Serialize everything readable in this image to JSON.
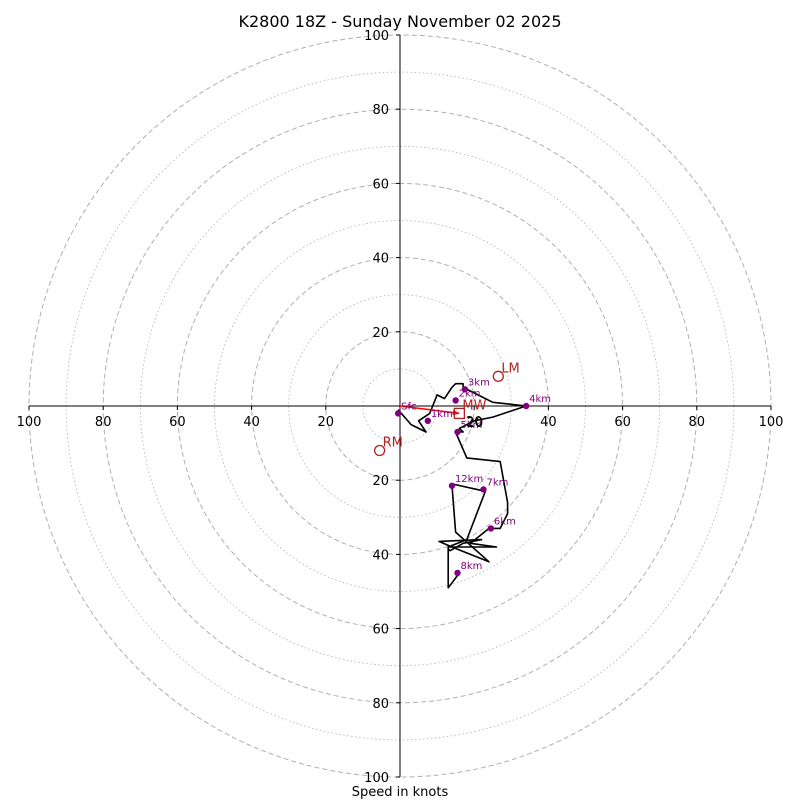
{
  "chart_data": {
    "type": "polar-hodograph",
    "title": "K2800 18Z - Sunday November 02 2025",
    "xlabel": "Speed in knots",
    "axis_range": [
      -100,
      100
    ],
    "major_rings": [
      20,
      40,
      60,
      80,
      100
    ],
    "minor_rings": [
      10,
      30,
      50,
      70,
      90
    ],
    "tick_labels": [
      "100",
      "80",
      "60",
      "40",
      "20",
      "20",
      "40",
      "60",
      "80",
      "100"
    ],
    "axis_ticks": [
      {
        "value": -100,
        "label": "100"
      },
      {
        "value": -80,
        "label": "80"
      },
      {
        "value": -60,
        "label": "60"
      },
      {
        "value": -40,
        "label": "40"
      },
      {
        "value": -20,
        "label": "20"
      },
      {
        "value": 20,
        "label": "20"
      },
      {
        "value": 40,
        "label": "40"
      },
      {
        "value": 60,
        "label": "60"
      },
      {
        "value": 80,
        "label": "80"
      },
      {
        "value": 100,
        "label": "100"
      }
    ],
    "center_label": "20",
    "hodograph_path": [
      [
        -0.5,
        -1
      ],
      [
        3,
        -5
      ],
      [
        7,
        -7
      ],
      [
        5,
        -4
      ],
      [
        8,
        -2
      ],
      [
        10,
        3
      ],
      [
        12,
        2
      ],
      [
        14,
        5
      ],
      [
        15,
        6
      ],
      [
        17,
        6
      ],
      [
        17,
        5
      ],
      [
        21,
        3
      ],
      [
        25,
        1
      ],
      [
        34,
        0
      ],
      [
        25,
        -3
      ],
      [
        20,
        -4
      ],
      [
        16,
        -6
      ],
      [
        17,
        -7
      ],
      [
        15,
        -7
      ],
      [
        18,
        -14
      ],
      [
        27,
        -15
      ],
      [
        29,
        -26
      ],
      [
        29,
        -29
      ],
      [
        27,
        -33
      ],
      [
        24,
        -33
      ],
      [
        19,
        -37
      ],
      [
        26,
        -38
      ],
      [
        13,
        -38
      ],
      [
        13,
        -38.5
      ],
      [
        13.5,
        -39
      ],
      [
        17,
        -37
      ],
      [
        22,
        -36
      ],
      [
        10.5,
        -36.5
      ],
      [
        14,
        -38
      ],
      [
        24,
        -42
      ],
      [
        15,
        -34
      ],
      [
        14,
        -21
      ],
      [
        23,
        -23
      ],
      [
        18,
        -36
      ],
      [
        13,
        -38
      ],
      [
        13,
        -49
      ],
      [
        16,
        -45
      ]
    ],
    "height_markers": [
      {
        "label": "Sfc",
        "x": -0.5,
        "y": -2
      },
      {
        "label": "1km",
        "x": 7.5,
        "y": -4
      },
      {
        "label": "2km",
        "x": 15,
        "y": 1.5
      },
      {
        "label": "3km",
        "x": 17.5,
        "y": 4.5
      },
      {
        "label": "4km",
        "x": 34,
        "y": 0
      },
      {
        "label": "5km",
        "x": 15.5,
        "y": -7
      },
      {
        "label": "6km",
        "x": 24.5,
        "y": -33
      },
      {
        "label": "7km",
        "x": 22.5,
        "y": -22.5
      },
      {
        "label": "8km",
        "x": 15.5,
        "y": -45
      },
      {
        "label": "12km",
        "x": 14,
        "y": -21.5
      }
    ],
    "storm_motion": [
      {
        "label": "LM",
        "x": 26.5,
        "y": 8,
        "marker": "circle"
      },
      {
        "label": "MW",
        "x": 16,
        "y": -2,
        "marker": "square"
      },
      {
        "label": "RM",
        "x": -5.5,
        "y": -12,
        "marker": "circle"
      }
    ],
    "mean_wind_vector": {
      "from": [
        0,
        0
      ],
      "to": [
        16,
        -2
      ]
    },
    "colors": {
      "path": "#000000",
      "marker": "#800080",
      "storm": "#b22222",
      "vector": "#ff0000",
      "grid": "#b0b0b0",
      "axis": "#000000"
    }
  }
}
